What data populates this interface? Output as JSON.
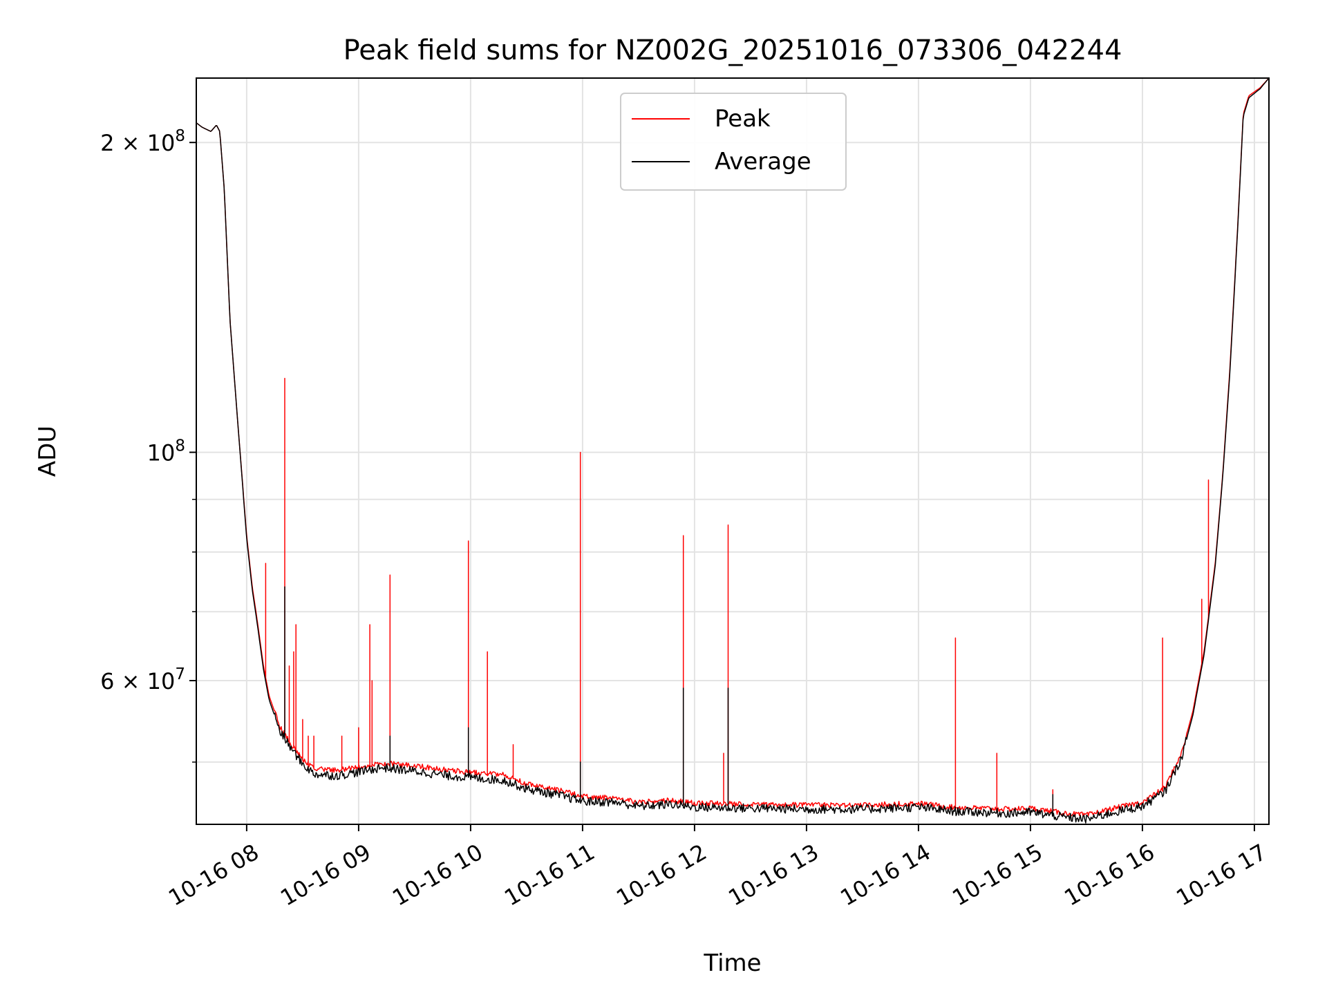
{
  "chart_data": {
    "type": "line",
    "title": "Peak field sums for NZ002G_20251016_073306_042244",
    "xlabel": "Time",
    "ylabel": "ADU",
    "x_unit": "hours since 2025-10-16 00:00",
    "xlim": [
      7.55,
      17.13
    ],
    "ylim": [
      43500000,
      231000000
    ],
    "yscale": "log",
    "grid": true,
    "legend_position": "top-center",
    "x_ticks": [
      {
        "value": 8,
        "label": "10-16 08"
      },
      {
        "value": 9,
        "label": "10-16 09"
      },
      {
        "value": 10,
        "label": "10-16 10"
      },
      {
        "value": 11,
        "label": "10-16 11"
      },
      {
        "value": 12,
        "label": "10-16 12"
      },
      {
        "value": 13,
        "label": "10-16 13"
      },
      {
        "value": 14,
        "label": "10-16 14"
      },
      {
        "value": 15,
        "label": "10-16 15"
      },
      {
        "value": 16,
        "label": "10-16 16"
      },
      {
        "value": 17,
        "label": "10-16 17"
      }
    ],
    "y_major_ticks": [
      {
        "value": 60000000,
        "label": "6 × 10^7",
        "mantissa": "6 × 10",
        "exp": "7"
      },
      {
        "value": 100000000,
        "label": "10^8",
        "mantissa": "10",
        "exp": "8"
      },
      {
        "value": 200000000,
        "label": "2 × 10^8",
        "mantissa": "2 × 10",
        "exp": "8"
      }
    ],
    "y_minor_ticks": [
      50000000,
      70000000,
      80000000,
      90000000
    ],
    "series": [
      {
        "name": "Peak",
        "color": "#ff0000",
        "baseline": [
          [
            7.55,
            209000000
          ],
          [
            7.6,
            207000000
          ],
          [
            7.68,
            205000000
          ],
          [
            7.73,
            208000000
          ],
          [
            7.76,
            205000000
          ],
          [
            7.8,
            180000000
          ],
          [
            7.85,
            135000000
          ],
          [
            7.92,
            107000000
          ],
          [
            8.0,
            83000000
          ],
          [
            8.05,
            74000000
          ],
          [
            8.1,
            68000000
          ],
          [
            8.15,
            62000000
          ],
          [
            8.2,
            58000000
          ],
          [
            8.3,
            54000000
          ],
          [
            8.4,
            52000000
          ],
          [
            8.5,
            50300000
          ],
          [
            8.6,
            49300000
          ],
          [
            8.8,
            49100000
          ],
          [
            9.0,
            49400000
          ],
          [
            9.2,
            49900000
          ],
          [
            9.5,
            49600000
          ],
          [
            9.8,
            49100000
          ],
          [
            10.0,
            48900000
          ],
          [
            10.3,
            48600000
          ],
          [
            10.5,
            47600000
          ],
          [
            10.8,
            46900000
          ],
          [
            11.0,
            46300000
          ],
          [
            11.3,
            46100000
          ],
          [
            11.5,
            45700000
          ],
          [
            11.8,
            45900000
          ],
          [
            12.0,
            45600000
          ],
          [
            12.5,
            45500000
          ],
          [
            13.0,
            45400000
          ],
          [
            13.5,
            45400000
          ],
          [
            14.0,
            45600000
          ],
          [
            14.3,
            45200000
          ],
          [
            14.8,
            45000000
          ],
          [
            15.0,
            45100000
          ],
          [
            15.3,
            44600000
          ],
          [
            15.5,
            44400000
          ],
          [
            15.75,
            45100000
          ],
          [
            16.0,
            45700000
          ],
          [
            16.2,
            47200000
          ],
          [
            16.35,
            51000000
          ],
          [
            16.45,
            56000000
          ],
          [
            16.55,
            64000000
          ],
          [
            16.65,
            78000000
          ],
          [
            16.72,
            96000000
          ],
          [
            16.78,
            120000000
          ],
          [
            16.85,
            165000000
          ],
          [
            16.9,
            213000000
          ],
          [
            16.95,
            222000000
          ],
          [
            17.05,
            226000000
          ],
          [
            17.13,
            231000000
          ]
        ],
        "spikes": [
          [
            8.17,
            78000000
          ],
          [
            8.34,
            118000000
          ],
          [
            8.38,
            62000000
          ],
          [
            8.42,
            64000000
          ],
          [
            8.44,
            68000000
          ],
          [
            8.5,
            55000000
          ],
          [
            8.55,
            53000000
          ],
          [
            8.6,
            53000000
          ],
          [
            8.85,
            53000000
          ],
          [
            9.0,
            54000000
          ],
          [
            9.1,
            68000000
          ],
          [
            9.12,
            60000000
          ],
          [
            9.28,
            76000000
          ],
          [
            9.98,
            82000000
          ],
          [
            10.15,
            64000000
          ],
          [
            10.38,
            52000000
          ],
          [
            10.98,
            100000000
          ],
          [
            11.9,
            83000000
          ],
          [
            12.26,
            51000000
          ],
          [
            12.3,
            85000000
          ],
          [
            14.33,
            66000000
          ],
          [
            14.7,
            51000000
          ],
          [
            15.2,
            47000000
          ],
          [
            16.18,
            66000000
          ],
          [
            16.53,
            72000000
          ],
          [
            16.59,
            94000000
          ]
        ]
      },
      {
        "name": "Average",
        "color": "#000000",
        "baseline": [
          [
            7.55,
            209000000
          ],
          [
            7.6,
            207000000
          ],
          [
            7.68,
            205000000
          ],
          [
            7.73,
            208000000
          ],
          [
            7.76,
            205000000
          ],
          [
            7.8,
            180000000
          ],
          [
            7.85,
            135000000
          ],
          [
            7.92,
            107000000
          ],
          [
            8.0,
            82500000
          ],
          [
            8.05,
            73500000
          ],
          [
            8.1,
            67500000
          ],
          [
            8.15,
            61500000
          ],
          [
            8.2,
            57500000
          ],
          [
            8.3,
            53500000
          ],
          [
            8.4,
            51500000
          ],
          [
            8.5,
            49800000
          ],
          [
            8.6,
            48700000
          ],
          [
            8.8,
            48500000
          ],
          [
            9.0,
            48900000
          ],
          [
            9.2,
            49400000
          ],
          [
            9.5,
            49000000
          ],
          [
            9.8,
            48500000
          ],
          [
            10.0,
            48300000
          ],
          [
            10.3,
            48000000
          ],
          [
            10.5,
            47100000
          ],
          [
            10.8,
            46400000
          ],
          [
            11.0,
            45800000
          ],
          [
            11.3,
            45700000
          ],
          [
            11.5,
            45300000
          ],
          [
            11.8,
            45500000
          ],
          [
            12.0,
            45200000
          ],
          [
            12.5,
            45100000
          ],
          [
            13.0,
            45000000
          ],
          [
            13.5,
            45000000
          ],
          [
            14.0,
            45200000
          ],
          [
            14.3,
            44800000
          ],
          [
            14.8,
            44600000
          ],
          [
            15.0,
            44700000
          ],
          [
            15.3,
            44200000
          ],
          [
            15.5,
            44000000
          ],
          [
            15.75,
            44700000
          ],
          [
            16.0,
            45300000
          ],
          [
            16.2,
            46800000
          ],
          [
            16.35,
            50500000
          ],
          [
            16.45,
            55500000
          ],
          [
            16.55,
            63500000
          ],
          [
            16.65,
            77500000
          ],
          [
            16.72,
            95500000
          ],
          [
            16.78,
            119000000
          ],
          [
            16.85,
            164000000
          ],
          [
            16.9,
            212000000
          ],
          [
            16.95,
            221000000
          ],
          [
            17.05,
            225500000
          ],
          [
            17.13,
            231000000
          ]
        ],
        "spikes": [
          [
            8.34,
            74000000
          ],
          [
            9.28,
            53000000
          ],
          [
            9.98,
            54000000
          ],
          [
            10.98,
            50000000
          ],
          [
            11.9,
            59000000
          ],
          [
            12.3,
            59000000
          ],
          [
            15.2,
            46500000
          ]
        ]
      }
    ]
  }
}
